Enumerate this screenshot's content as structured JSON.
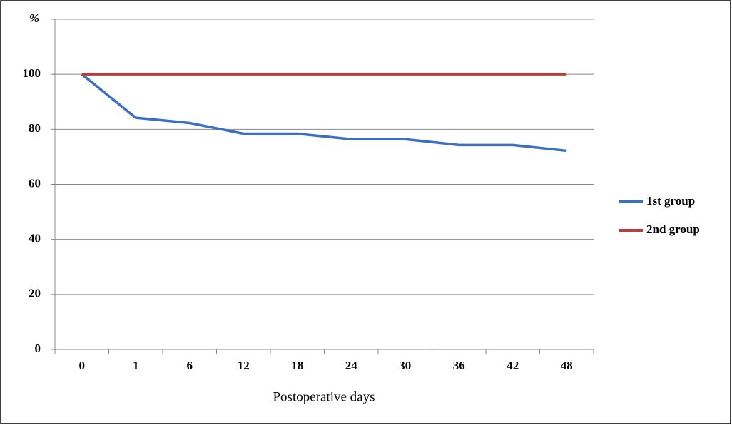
{
  "chart_data": {
    "type": "line",
    "x_label": "Postoperative days",
    "categories": [
      "0",
      "1",
      "6",
      "12",
      "18",
      "24",
      "30",
      "36",
      "42",
      "48"
    ],
    "series": [
      {
        "name": "1st group",
        "color": "#3b6fc2",
        "values": [
          100,
          84.2,
          82.3,
          78.4,
          78.4,
          76.4,
          76.4,
          74.3,
          74.3,
          72.2
        ]
      },
      {
        "name": "2nd group",
        "color": "#bf3b35",
        "values": [
          100,
          100,
          100,
          100,
          100,
          100,
          100,
          100,
          100,
          100
        ]
      }
    ],
    "ylim": [
      0,
      120
    ],
    "yticks": [
      0,
      20,
      40,
      60,
      80,
      100,
      {
        "value": 120,
        "label": "%"
      }
    ],
    "grid": true,
    "legend": "right"
  }
}
